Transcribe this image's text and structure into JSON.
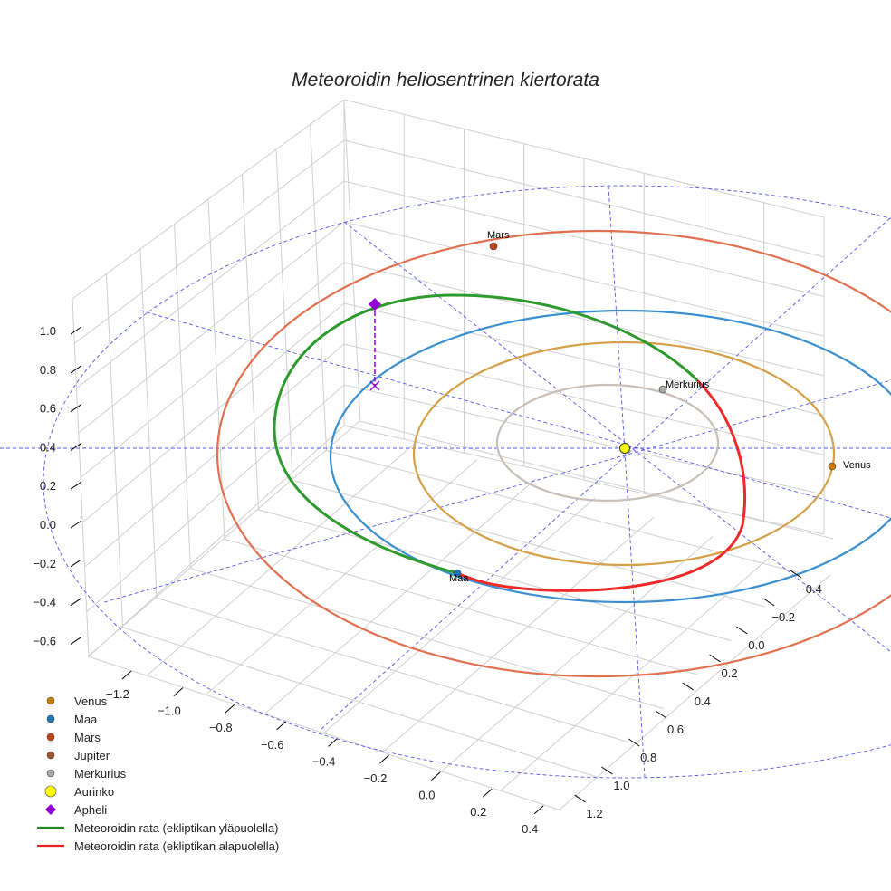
{
  "chart_data": {
    "type": "scatter3d",
    "title": "Meteoroidin heliosentrinen kiertorata",
    "x_ticks": [
      "−1.2",
      "−1.0",
      "−0.8",
      "−0.6",
      "−0.4",
      "−0.2",
      "0.0",
      "0.2",
      "0.4"
    ],
    "y_ticks": [
      "−0.4",
      "−0.2",
      "0.0",
      "0.2",
      "0.4",
      "0.6",
      "0.8",
      "1.0",
      "1.2"
    ],
    "z_ticks": [
      "1.0",
      "0.8",
      "0.6",
      "0.4",
      "0.2",
      "0.0",
      "−0.2",
      "−0.4",
      "−0.6"
    ],
    "xlim": [
      -1.3,
      0.45
    ],
    "ylim": [
      -0.5,
      1.3
    ],
    "zlim": [
      -0.7,
      1.1
    ],
    "point_labels": {
      "mars": "Mars",
      "merkurius": "Merkurius",
      "venus": "Venus",
      "maa": "Maa"
    },
    "legend": [
      {
        "label": "Venus",
        "color": "#c87f0a",
        "marker": "circle"
      },
      {
        "label": "Maa",
        "color": "#1f77b4",
        "marker": "circle"
      },
      {
        "label": "Mars",
        "color": "#c1440e",
        "marker": "circle"
      },
      {
        "label": "Jupiter",
        "color": "#a0522d",
        "marker": "circle"
      },
      {
        "label": "Merkurius",
        "color": "#a9a9a9",
        "marker": "circle"
      },
      {
        "label": "Aurinko",
        "color": "#ffff00",
        "marker": "circle"
      },
      {
        "label": "Apheli",
        "color": "#9400d3",
        "marker": "diamond"
      },
      {
        "label": "Meteoroidin rata (ekliptikan yläpuolella)",
        "color": "#228b22",
        "marker": "line"
      },
      {
        "label": "Meteoroidin rata (ekliptikan alapuolella)",
        "color": "#ee2222",
        "marker": "line"
      }
    ],
    "legend_position": "lower-left"
  }
}
